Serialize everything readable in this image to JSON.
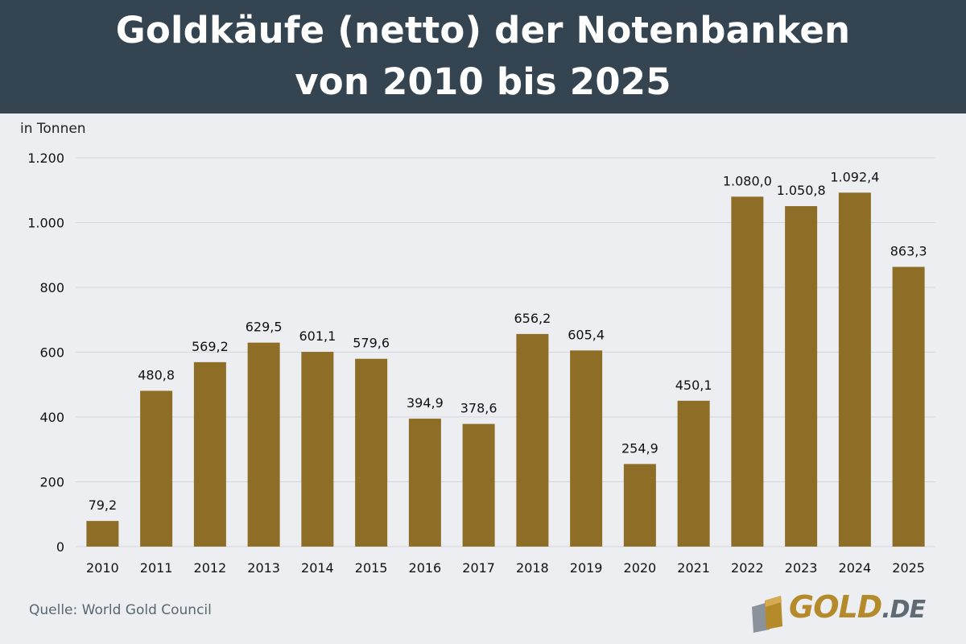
{
  "header": {
    "title_line1": "Goldkäufe (netto) der  Notenbanken",
    "title_line2": "von 2010 bis 2025"
  },
  "chart_data": {
    "type": "bar",
    "title": "Goldkäufe (netto) der  Notenbanken von 2010 bis 2025",
    "ylabel": "in Tonnen",
    "xlabel": "",
    "ylim": [
      0,
      1200
    ],
    "yticks": [
      0,
      200,
      400,
      600,
      800,
      1000,
      1200
    ],
    "ytick_labels": [
      "0",
      "200",
      "400",
      "600",
      "800",
      "1.000",
      "1.200"
    ],
    "grid": true,
    "categories": [
      "2010",
      "2011",
      "2012",
      "2013",
      "2014",
      "2015",
      "2016",
      "2017",
      "2018",
      "2019",
      "2020",
      "2021",
      "2022",
      "2023",
      "2024",
      "2025"
    ],
    "values": [
      79.2,
      480.8,
      569.2,
      629.5,
      601.1,
      579.6,
      394.9,
      378.6,
      656.2,
      605.4,
      254.9,
      450.1,
      1080.0,
      1050.8,
      1092.4,
      863.3
    ],
    "value_labels": [
      "79,2",
      "480,8",
      "569,2",
      "629,5",
      "601,1",
      "579,6",
      "394,9",
      "378,6",
      "656,2",
      "605,4",
      "254,9",
      "450,1",
      "1.080,0",
      "1.050,8",
      "1.092,4",
      "863,3"
    ],
    "bar_color": "#8e6e27",
    "grid_color": "#d3d7dc"
  },
  "footer": {
    "source": "Quelle: World Gold Council"
  },
  "logo": {
    "main": "GOLD",
    "tld": ".DE",
    "icon": "gold-bars-icon"
  },
  "colors": {
    "header_bg": "#344451",
    "background": "#eceef1",
    "logo_gold": "#b58a2a",
    "logo_grey": "#5f6a73"
  }
}
